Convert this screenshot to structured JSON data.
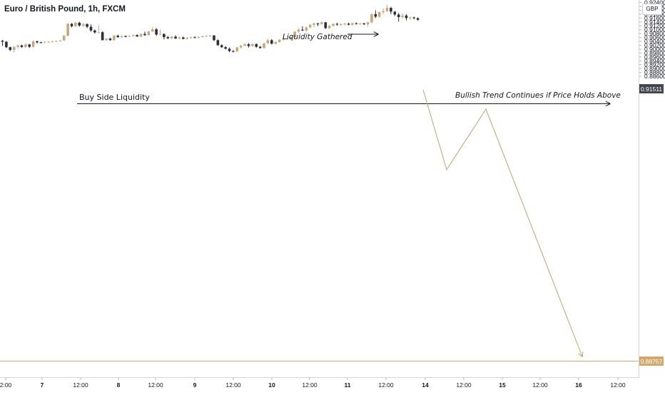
{
  "title": "Euro / British Pound, 1h, FXCM",
  "currency": "GBP",
  "colors": {
    "up": "#c9a77b",
    "down": "#2a2e39",
    "resistance": "#131722",
    "projection": "#c2a06f",
    "target": "#d4a86a",
    "current_badge": "#434651",
    "target_badge": "#d4a86a",
    "axis_text": "#131722"
  },
  "annotations": {
    "buy_side": "Buy Side Liquidity",
    "gathered": "Liquidity Gathered",
    "bullish": "Bullish Trend Continues if Price Holds Above"
  },
  "chart_data": {
    "type": "candlestick",
    "title": "Euro / British Pound, 1h, FXCM",
    "y_axis": {
      "ticks": [
        "0.92400",
        "0.92200",
        "0.92000",
        "0.91800",
        "0.91600",
        "0.91400",
        "0.91200",
        "0.91000",
        "0.90800",
        "0.90600",
        "0.90400",
        "0.90200",
        "0.90000",
        "0.89800",
        "0.89600",
        "0.89400",
        "0.89200",
        "0.89000",
        "0.88800",
        "0.88600"
      ],
      "range": [
        0.886,
        0.9245
      ]
    },
    "x_axis": {
      "ticks": [
        "2:00",
        "7",
        "12:00",
        "8",
        "12:00",
        "9",
        "12:00",
        "10",
        "12:00",
        "11",
        "12:00",
        "14",
        "12:00",
        "15",
        "12:00",
        "16",
        "12:00"
      ],
      "bold": [
        "7",
        "8",
        "9",
        "10",
        "11",
        "14",
        "15",
        "16"
      ]
    },
    "current_price": "0.91511",
    "target_price": "0.88757",
    "resistance_level": 0.9137,
    "candles": [
      [
        0.9043,
        0.9048,
        0.9016,
        0.9038
      ],
      [
        0.9038,
        0.9042,
        0.9005,
        0.901
      ],
      [
        0.901,
        0.9012,
        0.899,
        0.8996
      ],
      [
        0.8996,
        0.9016,
        0.8983,
        0.9012
      ],
      [
        0.9012,
        0.9024,
        0.9003,
        0.9019
      ],
      [
        0.9019,
        0.9023,
        0.9006,
        0.9011
      ],
      [
        0.9011,
        0.903,
        0.9006,
        0.9024
      ],
      [
        0.9024,
        0.9027,
        0.9006,
        0.9012
      ],
      [
        0.9012,
        0.9045,
        0.9008,
        0.904
      ],
      [
        0.904,
        0.9044,
        0.9028,
        0.9035
      ],
      [
        0.9035,
        0.9038,
        0.903,
        0.9034
      ],
      [
        0.9034,
        0.9039,
        0.9032,
        0.9037
      ],
      [
        0.9037,
        0.9041,
        0.9033,
        0.9038
      ],
      [
        0.9038,
        0.9043,
        0.9035,
        0.9041
      ],
      [
        0.9041,
        0.9044,
        0.9037,
        0.9042
      ],
      [
        0.9042,
        0.9046,
        0.9038,
        0.9045
      ],
      [
        0.9045,
        0.9072,
        0.9042,
        0.9069
      ],
      [
        0.9069,
        0.9133,
        0.9065,
        0.913
      ],
      [
        0.913,
        0.9134,
        0.9112,
        0.9118
      ],
      [
        0.9118,
        0.914,
        0.9114,
        0.9136
      ],
      [
        0.9136,
        0.9141,
        0.9115,
        0.9121
      ],
      [
        0.9121,
        0.9135,
        0.9114,
        0.9129
      ],
      [
        0.9129,
        0.9132,
        0.9108,
        0.9115
      ],
      [
        0.9115,
        0.9127,
        0.909,
        0.9096
      ],
      [
        0.9096,
        0.9101,
        0.908,
        0.9086
      ],
      [
        0.9086,
        0.9123,
        0.9082,
        0.9087
      ],
      [
        0.9087,
        0.9092,
        0.9045,
        0.9046
      ],
      [
        0.9046,
        0.9056,
        0.9044,
        0.9054
      ],
      [
        0.9054,
        0.9059,
        0.9044,
        0.9046
      ],
      [
        0.9046,
        0.9071,
        0.9043,
        0.9069
      ],
      [
        0.9069,
        0.9075,
        0.9058,
        0.9062
      ],
      [
        0.9062,
        0.9069,
        0.9058,
        0.9066
      ],
      [
        0.9066,
        0.9072,
        0.9062,
        0.9064
      ],
      [
        0.9064,
        0.907,
        0.9061,
        0.9068
      ],
      [
        0.9068,
        0.9076,
        0.9063,
        0.9072
      ],
      [
        0.9072,
        0.9076,
        0.9063,
        0.9065
      ],
      [
        0.9065,
        0.908,
        0.9062,
        0.9078
      ],
      [
        0.9078,
        0.909,
        0.9068,
        0.9072
      ],
      [
        0.9072,
        0.9094,
        0.907,
        0.9091
      ],
      [
        0.9091,
        0.9114,
        0.9087,
        0.9102
      ],
      [
        0.9102,
        0.9109,
        0.9068,
        0.9075
      ],
      [
        0.9075,
        0.9101,
        0.9072,
        0.9078
      ],
      [
        0.9078,
        0.9081,
        0.905,
        0.9062
      ],
      [
        0.9062,
        0.9067,
        0.9051,
        0.9056
      ],
      [
        0.9056,
        0.9066,
        0.9052,
        0.9064
      ],
      [
        0.9064,
        0.9071,
        0.9052,
        0.9055
      ],
      [
        0.9055,
        0.9064,
        0.9051,
        0.906
      ],
      [
        0.906,
        0.9065,
        0.905,
        0.9053
      ],
      [
        0.9053,
        0.9062,
        0.905,
        0.9058
      ],
      [
        0.9058,
        0.9064,
        0.9054,
        0.9061
      ],
      [
        0.9061,
        0.9066,
        0.9056,
        0.9059
      ],
      [
        0.9059,
        0.9067,
        0.9055,
        0.9063
      ],
      [
        0.9063,
        0.907,
        0.906,
        0.9066
      ],
      [
        0.9066,
        0.9071,
        0.9063,
        0.9068
      ],
      [
        0.9068,
        0.9073,
        0.9064,
        0.907
      ],
      [
        0.907,
        0.9073,
        0.9042,
        0.9046
      ],
      [
        0.9046,
        0.905,
        0.9018,
        0.902
      ],
      [
        0.902,
        0.9025,
        0.9006,
        0.901
      ],
      [
        0.901,
        0.9016,
        0.8998,
        0.9002
      ],
      [
        0.9002,
        0.9009,
        0.8985,
        0.899
      ],
      [
        0.899,
        0.8995,
        0.8983,
        0.8989
      ],
      [
        0.8989,
        0.9012,
        0.8985,
        0.9009
      ],
      [
        0.9009,
        0.9022,
        0.9003,
        0.9018
      ],
      [
        0.9018,
        0.9032,
        0.9013,
        0.9025
      ],
      [
        0.9025,
        0.9031,
        0.9008,
        0.9016
      ],
      [
        0.9016,
        0.903,
        0.9012,
        0.9026
      ],
      [
        0.9026,
        0.903,
        0.9007,
        0.9012
      ],
      [
        0.9012,
        0.9017,
        0.9002,
        0.9006
      ],
      [
        0.9006,
        0.9032,
        0.9003,
        0.903
      ],
      [
        0.903,
        0.9055,
        0.9026,
        0.9046
      ],
      [
        0.9046,
        0.9052,
        0.9024,
        0.9028
      ],
      [
        0.9028,
        0.904,
        0.9023,
        0.9037
      ],
      [
        0.9037,
        0.9051,
        0.9033,
        0.9048
      ],
      [
        0.9048,
        0.9056,
        0.9043,
        0.9052
      ],
      [
        0.9052,
        0.9058,
        0.9047,
        0.9055
      ],
      [
        0.9055,
        0.9065,
        0.905,
        0.9062
      ],
      [
        0.9062,
        0.9092,
        0.9058,
        0.909
      ],
      [
        0.909,
        0.9108,
        0.9084,
        0.91
      ],
      [
        0.91,
        0.9117,
        0.9093,
        0.9096
      ],
      [
        0.9096,
        0.9115,
        0.909,
        0.9112
      ],
      [
        0.9112,
        0.913,
        0.9108,
        0.9125
      ],
      [
        0.9125,
        0.9137,
        0.9113,
        0.9132
      ],
      [
        0.9132,
        0.9136,
        0.9118,
        0.9129
      ],
      [
        0.9129,
        0.9142,
        0.9125,
        0.9138
      ],
      [
        0.9138,
        0.914,
        0.9104,
        0.9108
      ],
      [
        0.9108,
        0.9125,
        0.9103,
        0.912
      ],
      [
        0.912,
        0.9132,
        0.9115,
        0.913
      ],
      [
        0.913,
        0.9136,
        0.912,
        0.9127
      ],
      [
        0.9127,
        0.9134,
        0.912,
        0.9128
      ],
      [
        0.9128,
        0.9135,
        0.9122,
        0.9131
      ],
      [
        0.9131,
        0.9136,
        0.9122,
        0.9126
      ],
      [
        0.9126,
        0.9138,
        0.9121,
        0.9133
      ],
      [
        0.9133,
        0.9137,
        0.9127,
        0.9129
      ],
      [
        0.9129,
        0.9134,
        0.9124,
        0.9132
      ],
      [
        0.9132,
        0.9136,
        0.9124,
        0.9128
      ],
      [
        0.9128,
        0.914,
        0.9117,
        0.9138
      ],
      [
        0.9138,
        0.9185,
        0.9133,
        0.918
      ],
      [
        0.918,
        0.92,
        0.916,
        0.9167
      ],
      [
        0.9167,
        0.9195,
        0.916,
        0.919
      ],
      [
        0.919,
        0.921,
        0.918,
        0.9196
      ],
      [
        0.9196,
        0.9228,
        0.919,
        0.9212
      ],
      [
        0.9212,
        0.9218,
        0.918,
        0.9193
      ],
      [
        0.9193,
        0.9196,
        0.917,
        0.9178
      ],
      [
        0.9178,
        0.9186,
        0.9142,
        0.9165
      ],
      [
        0.9165,
        0.9185,
        0.9155,
        0.9173
      ],
      [
        0.9173,
        0.918,
        0.9148,
        0.916
      ],
      [
        0.916,
        0.9168,
        0.915,
        0.9163
      ],
      [
        0.9163,
        0.9167,
        0.9154,
        0.9159
      ],
      [
        0.9159,
        0.9164,
        0.9147,
        0.9151
      ]
    ]
  }
}
